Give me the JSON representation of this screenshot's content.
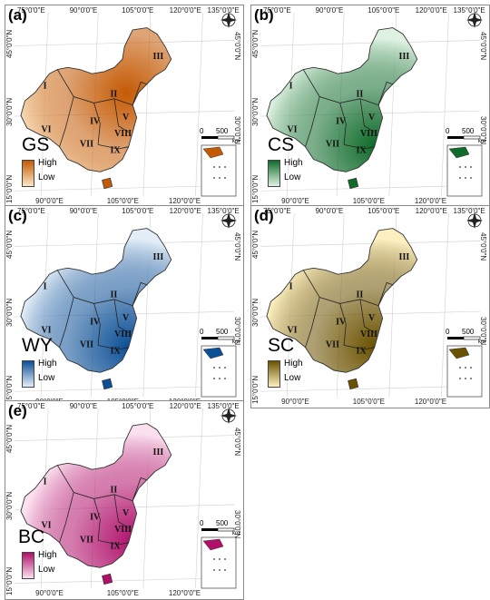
{
  "legend": {
    "high": "High",
    "low": "Low"
  },
  "scale_bar": {
    "start": "0",
    "end": "500",
    "unit": "km"
  },
  "region_labels": [
    "I",
    "II",
    "III",
    "IV",
    "V",
    "VI",
    "VII",
    "VIII",
    "IX"
  ],
  "longitude_ticks_top": [
    "75°0'0\"E",
    "90°0'0\"E",
    "105°0'0\"E",
    "120°0'0\"E",
    "135°0'0\"E"
  ],
  "longitude_ticks_bottom": [
    "90°0'0\"E",
    "105°0'0\"E",
    "120°0'0\"E"
  ],
  "latitude_ticks_left": [
    "45°0'0\"N",
    "30°0'0\"N",
    "15°0'0\"N"
  ],
  "latitude_ticks_right": [
    "45°0'0\"N",
    "30°0'0\"N"
  ],
  "panels": [
    {
      "id": "a",
      "label": "(a)",
      "service": "GS",
      "color_high": "#c45a05",
      "color_low": "#fde6c4"
    },
    {
      "id": "b",
      "label": "(b)",
      "service": "CS",
      "color_high": "#0f6b2a",
      "color_low": "#dff2e2"
    },
    {
      "id": "c",
      "label": "(c)",
      "service": "WY",
      "color_high": "#0c4f96",
      "color_low": "#e4eef8"
    },
    {
      "id": "d",
      "label": "(d)",
      "service": "SC",
      "color_high": "#6b5200",
      "color_low": "#fdf0c0"
    },
    {
      "id": "e",
      "label": "(e)",
      "service": "BC",
      "color_high": "#b0106a",
      "color_low": "#fbe1ef"
    }
  ]
}
